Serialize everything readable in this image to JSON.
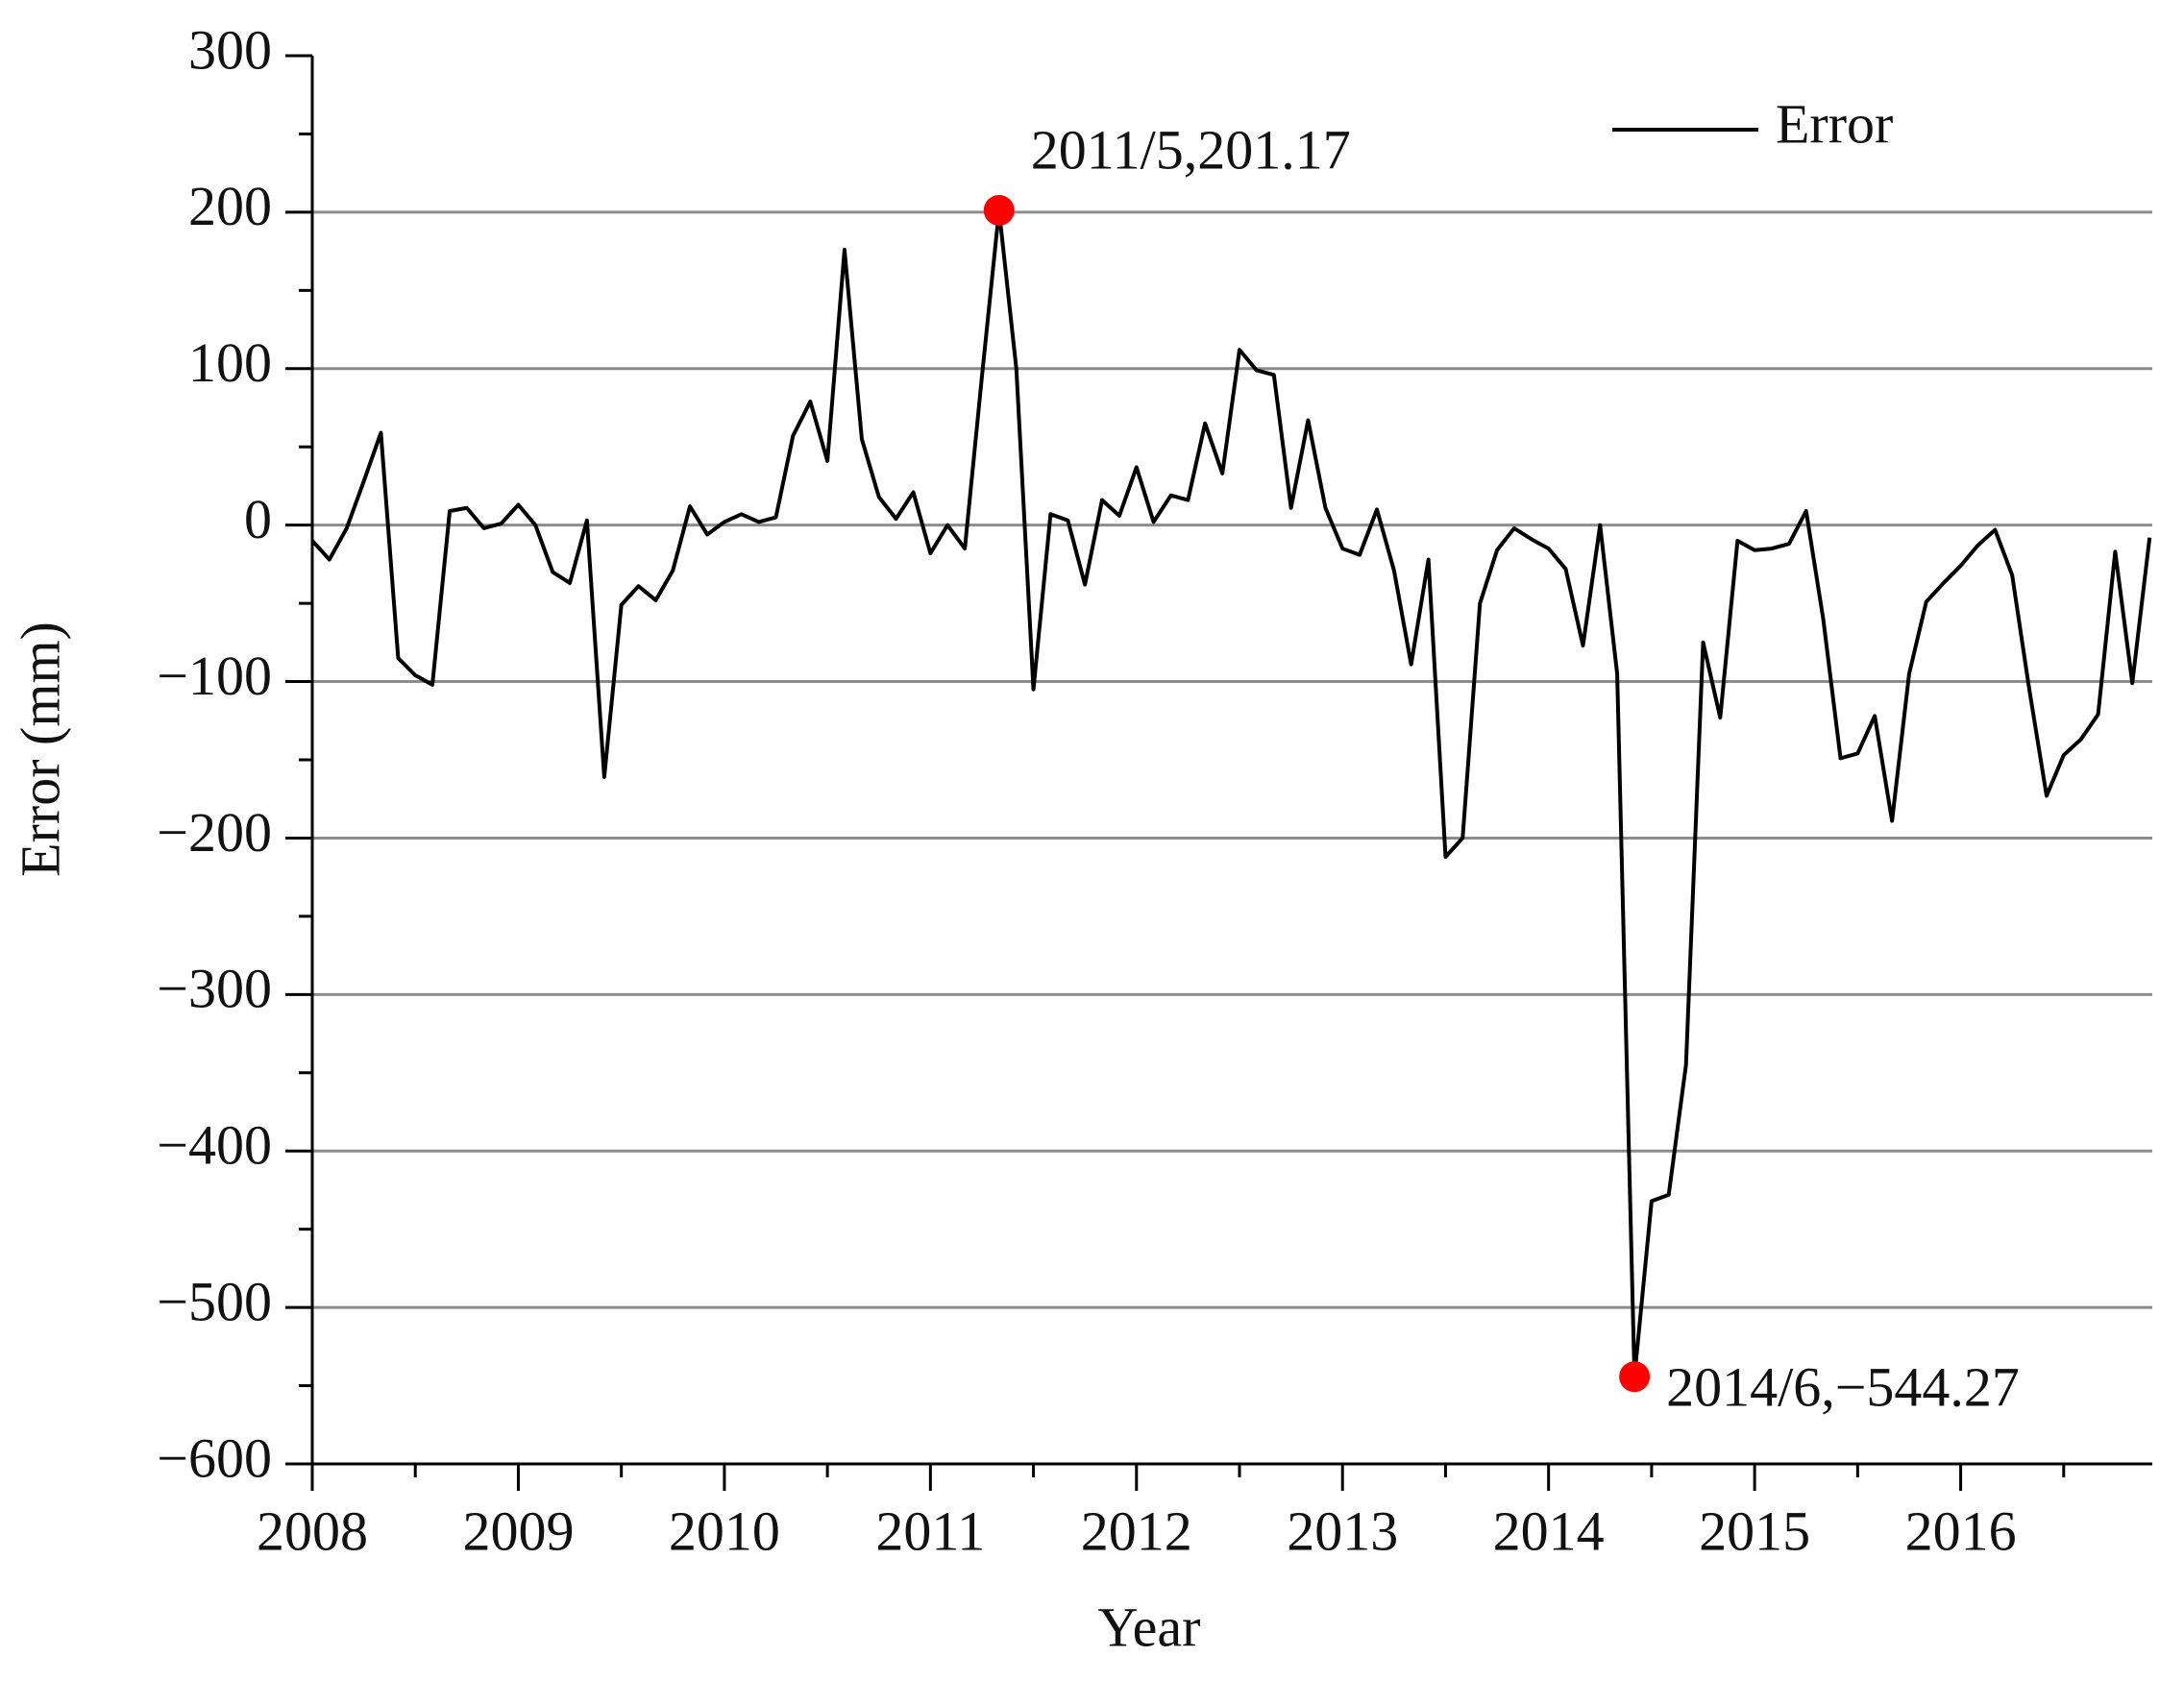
{
  "chart_data": {
    "type": "line",
    "x_label": "Year",
    "y_label": "Error (mm)",
    "xlim": [
      2008,
      2016.93
    ],
    "xticks": [
      2008,
      2009,
      2010,
      2011,
      2012,
      2013,
      2014,
      2015,
      2016
    ],
    "xminorticks": [
      2008.5,
      2009.5,
      2010.5,
      2011.5,
      2012.5,
      2013.5,
      2014.5,
      2015.5,
      2016.5
    ],
    "ylim": [
      -600,
      300
    ],
    "yticks": [
      {
        "value": -600,
        "label": "−600"
      },
      {
        "value": -500,
        "label": "−500"
      },
      {
        "value": -400,
        "label": "−400"
      },
      {
        "value": -300,
        "label": "−300"
      },
      {
        "value": -200,
        "label": "−200"
      },
      {
        "value": -100,
        "label": "−100"
      },
      0,
      100,
      200,
      300
    ],
    "yminorticks": [
      -550,
      -450,
      -350,
      -250,
      -150,
      -50,
      50,
      150,
      250
    ],
    "grid": true,
    "legend": "upper right",
    "x": [
      2008,
      2008.083,
      2008.167,
      2008.25,
      2008.333,
      2008.417,
      2008.5,
      2008.583,
      2008.667,
      2008.75,
      2008.833,
      2008.917,
      2009,
      2009.083,
      2009.167,
      2009.25,
      2009.333,
      2009.417,
      2009.5,
      2009.583,
      2009.667,
      2009.75,
      2009.833,
      2009.917,
      2010,
      2010.083,
      2010.167,
      2010.25,
      2010.333,
      2010.417,
      2010.5,
      2010.583,
      2010.667,
      2010.75,
      2010.833,
      2010.917,
      2011,
      2011.083,
      2011.167,
      2011.25,
      2011.333,
      2011.417,
      2011.5,
      2011.583,
      2011.667,
      2011.75,
      2011.833,
      2011.917,
      2012,
      2012.083,
      2012.167,
      2012.25,
      2012.333,
      2012.417,
      2012.5,
      2012.583,
      2012.667,
      2012.75,
      2012.833,
      2012.917,
      2013,
      2013.083,
      2013.167,
      2013.25,
      2013.333,
      2013.417,
      2013.5,
      2013.583,
      2013.667,
      2013.75,
      2013.833,
      2013.917,
      2014,
      2014.083,
      2014.167,
      2014.25,
      2014.333,
      2014.417,
      2014.5,
      2014.583,
      2014.667,
      2014.75,
      2014.833,
      2014.917,
      2015,
      2015.083,
      2015.167,
      2015.25,
      2015.333,
      2015.417,
      2015.5,
      2015.583,
      2015.667,
      2015.75,
      2015.833,
      2015.917,
      2016,
      2016.083,
      2016.167,
      2016.25,
      2016.333,
      2016.417,
      2016.5,
      2016.583,
      2016.667,
      2016.75,
      2016.833,
      2016.917
    ],
    "series": [
      {
        "name": "Error",
        "color": "#000000",
        "values": [
          -10,
          -22,
          -2,
          28,
          59,
          -85,
          -96,
          -102,
          9,
          11,
          -2,
          1,
          13,
          0,
          -30,
          -37,
          3,
          -161,
          -51,
          -39,
          -48,
          -29,
          12,
          -6,
          2,
          7,
          2,
          5,
          57,
          79,
          41,
          176,
          55,
          18,
          4,
          21,
          -18,
          0,
          -15,
          95,
          201.17,
          100,
          -105,
          7,
          3,
          -38,
          16,
          6,
          37,
          2,
          19,
          16,
          65,
          33,
          112,
          99,
          96,
          11,
          67,
          11,
          -15,
          -19,
          10,
          -29,
          -89,
          -22,
          -212,
          -200,
          -50,
          -16,
          -2,
          -9,
          -15,
          -28,
          -77,
          0,
          -95,
          -544.27,
          -432,
          -428,
          -345,
          -75,
          -123,
          -10,
          -16,
          -15,
          -12,
          9,
          -60,
          -149,
          -146,
          -122,
          -189,
          -95,
          -49,
          -37,
          -26,
          -13,
          -3,
          -32,
          -105,
          -173,
          -147,
          -137,
          -121,
          -17,
          -101,
          -8
        ]
      }
    ],
    "annotations": [
      {
        "x": 2011.333,
        "y": 201.17,
        "text": "2011/5,201.17",
        "color": "#ff0000"
      },
      {
        "x": 2014.417,
        "y": -544.27,
        "text": "2014/6,−544.27",
        "color": "#ff0000"
      }
    ]
  }
}
